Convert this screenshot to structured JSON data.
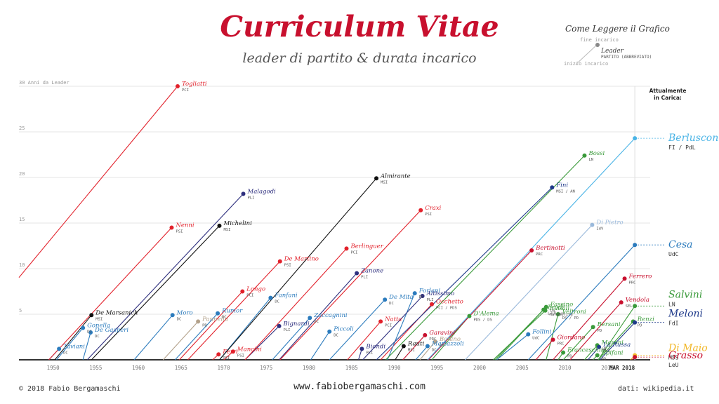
{
  "title": "Curriculum Vitae",
  "subtitle": "leader di partito & durata incarico",
  "legend": {
    "title": "Come Leggere il Grafico",
    "end_label": "fine incarico",
    "leader_label": "Leader",
    "party_label": "PARTITO (ABBREVIATO)",
    "start_label": "inizio incarico"
  },
  "footer": {
    "copyright": "© 2018 Fabio Bergamaschi",
    "website": "www.fabiobergamaschi.com",
    "source": "dati: wikipedia.it"
  },
  "chart_data": {
    "type": "scatter",
    "xlim": [
      1946,
      2020
    ],
    "ylim": [
      0,
      30
    ],
    "y_axis_top_label": "30 Anni da Leader",
    "x_ticks": [
      "1950",
      "1955",
      "1960",
      "1965",
      "1970",
      "1975",
      "1980",
      "1985",
      "1990",
      "1995",
      "2000",
      "2005",
      "2010",
      "2015"
    ],
    "y_ticks": [
      "5",
      "10",
      "15",
      "20",
      "25"
    ],
    "current_date_label": "MAR 2018",
    "current_header": "Attualmente in Carica:",
    "colors": {
      "PCI": "#e2212b",
      "DC": "#2b7bbd",
      "MSI": "#111111",
      "PSI": "#e2212b",
      "PLI": "#2e2f7e",
      "PR": "#b3a18b",
      "FI": "#4ab4e6",
      "UdC": "#2b7bbd",
      "LN": "#3a9a3a",
      "FdI": "#1f3a8a",
      "M5S": "#f2b82b",
      "LeU": "#c8102e",
      "PD": "#3a9a3a",
      "IdV": "#9ab9db",
      "PRC": "#c8102e",
      "SEL": "#c8102e",
      "AN": "#1f3a8a"
    },
    "leaders": [
      {
        "name": "Togliatti",
        "party": "PCI",
        "start": 1938.0,
        "end": 1964.6,
        "years": 30,
        "color": "PCI"
      },
      {
        "name": "Taviani",
        "party": "DC",
        "start": 1949.5,
        "end": 1950.7,
        "years": 1.2,
        "color": "DC"
      },
      {
        "name": "Gonella",
        "party": "DC",
        "start": 1950.4,
        "end": 1953.5,
        "years": 3.5,
        "color": "DC"
      },
      {
        "name": "De Gasperi",
        "party": "DC",
        "start": 1953.5,
        "end": 1954.4,
        "years": 3.0,
        "color": "DC"
      },
      {
        "name": "De Marsanich",
        "party": "MSI",
        "start": 1950.2,
        "end": 1954.5,
        "years": 4.9,
        "color": "MSI"
      },
      {
        "name": "Nenni",
        "party": "PSI",
        "start": 1949.5,
        "end": 1963.9,
        "years": 14.5,
        "color": "PSI"
      },
      {
        "name": "Malagodi",
        "party": "PLI",
        "start": 1954.0,
        "end": 1972.3,
        "years": 18.2,
        "color": "PLI"
      },
      {
        "name": "Michelini",
        "party": "MSI",
        "start": 1954.5,
        "end": 1969.5,
        "years": 14.7,
        "color": "MSI"
      },
      {
        "name": "Moro",
        "party": "DC",
        "start": 1959.5,
        "end": 1964.0,
        "years": 4.9,
        "color": "DC"
      },
      {
        "name": "Pannella",
        "party": "PR",
        "start": 1962.9,
        "end": 1967.0,
        "years": 4.2,
        "color": "PR"
      },
      {
        "name": "Rumor",
        "party": "DC",
        "start": 1964.3,
        "end": 1969.3,
        "years": 5.1,
        "color": "DC"
      },
      {
        "name": "Ferri",
        "party": "PSI",
        "start": 1968.7,
        "end": 1969.4,
        "years": 0.6,
        "color": "PSI"
      },
      {
        "name": "Mancini",
        "party": "PSI",
        "start": 1970.0,
        "end": 1971.1,
        "years": 0.9,
        "color": "PSI"
      },
      {
        "name": "Longo",
        "party": "PCI",
        "start": 1964.8,
        "end": 1972.2,
        "years": 7.5,
        "color": "PCI"
      },
      {
        "name": "De Martino",
        "party": "PSI",
        "start": 1965.8,
        "end": 1976.6,
        "years": 10.8,
        "color": "PSI"
      },
      {
        "name": "Fanfani",
        "party": "DC",
        "start": 1969.5,
        "end": 1975.5,
        "years": 6.8,
        "color": "DC"
      },
      {
        "name": "Bignardi",
        "party": "PLI",
        "start": 1972.5,
        "end": 1976.5,
        "years": 3.7,
        "color": "PLI"
      },
      {
        "name": "Almirante",
        "party": "MSI",
        "start": 1969.5,
        "end": 1987.9,
        "years": 19.9,
        "color": "MSI"
      },
      {
        "name": "Zaccagnini",
        "party": "DC",
        "start": 1975.7,
        "end": 1980.1,
        "years": 4.6,
        "color": "DC"
      },
      {
        "name": "Piccoli",
        "party": "DC",
        "start": 1980.2,
        "end": 1982.4,
        "years": 3.1,
        "color": "DC"
      },
      {
        "name": "Berlinguer",
        "party": "PCI",
        "start": 1972.5,
        "end": 1984.4,
        "years": 12.2,
        "color": "PCI"
      },
      {
        "name": "Zanone",
        "party": "PLI",
        "start": 1976.5,
        "end": 1985.6,
        "years": 9.5,
        "color": "PLI"
      },
      {
        "name": "Biondi",
        "party": "PLI",
        "start": 1985.8,
        "end": 1986.2,
        "years": 1.2,
        "color": "PLI"
      },
      {
        "name": "Craxi",
        "party": "PSI",
        "start": 1976.6,
        "end": 1993.1,
        "years": 16.4,
        "color": "PSI"
      },
      {
        "name": "De Mita",
        "party": "DC",
        "start": 1982.4,
        "end": 1988.9,
        "years": 6.6,
        "color": "DC"
      },
      {
        "name": "Natta",
        "party": "PCI",
        "start": 1984.5,
        "end": 1988.4,
        "years": 4.2,
        "color": "PCI"
      },
      {
        "name": "Rauti",
        "party": "MSI",
        "start": 1990.1,
        "end": 1991.1,
        "years": 1.5,
        "color": "MSI"
      },
      {
        "name": "Occhetto",
        "party": "PCI / PDS",
        "start": 1988.4,
        "end": 1994.4,
        "years": 6.1,
        "color": "PCI"
      },
      {
        "name": "Forlani",
        "party": "DC",
        "start": 1989.2,
        "end": 1992.4,
        "years": 7.3,
        "color": "DC"
      },
      {
        "name": "Altissimo",
        "party": "PLI",
        "start": 1986.3,
        "end": 1993.3,
        "years": 7.0,
        "color": "PLI"
      },
      {
        "name": "Martazzoli",
        "party": "DC",
        "start": 1992.5,
        "end": 1993.9,
        "years": 1.5,
        "color": "DC"
      },
      {
        "name": "Bonino",
        "party": "PR",
        "start": 1993.0,
        "end": 1994.8,
        "years": 2.0,
        "color": "PR"
      },
      {
        "name": "Garavini",
        "party": "PRC",
        "start": 1991.0,
        "end": 1993.6,
        "years": 2.7,
        "color": "PRC"
      },
      {
        "name": "Fini",
        "party": "MSI / AN",
        "start": 1987.9,
        "end": 2008.5,
        "years": 18.9,
        "color": "AN"
      },
      {
        "name": "D'Alema",
        "party": "PDS / DS",
        "start": 1994.4,
        "end": 1998.8,
        "years": 4.8,
        "color": "PD"
      },
      {
        "name": "Bertinotti",
        "party": "PRC",
        "start": 1994.0,
        "end": 2006.1,
        "years": 12.0,
        "color": "PRC"
      },
      {
        "name": "Prodi",
        "party": "L'Ulivo",
        "start": 2002.0,
        "end": 2007.5,
        "years": 5.5,
        "color": "PD"
      },
      {
        "name": "Fassino",
        "party": "DS",
        "start": 2001.8,
        "end": 2007.8,
        "years": 5.8,
        "color": "PD"
      },
      {
        "name": "Rutelli",
        "party": "Margherita",
        "start": 2001.6,
        "end": 2007.7,
        "years": 5.4,
        "color": "PD"
      },
      {
        "name": "Follini",
        "party": "UdC",
        "start": 2002.0,
        "end": 2005.7,
        "years": 2.8,
        "color": "UdC"
      },
      {
        "name": "Veltroni",
        "party": "DS / PD",
        "start": 2007.8,
        "end": 2009.2,
        "years": 5.0,
        "color": "PD"
      },
      {
        "name": "Franceschini",
        "party": "PD",
        "start": 2009.2,
        "end": 2009.8,
        "years": 0.8,
        "color": "PD"
      },
      {
        "name": "Giordano",
        "party": "PRC",
        "start": 2006.6,
        "end": 2008.6,
        "years": 2.2,
        "color": "PRC"
      },
      {
        "name": "Bossi",
        "party": "LN",
        "start": 1989.0,
        "end": 2012.3,
        "years": 22.4,
        "color": "LN"
      },
      {
        "name": "Di Pietro",
        "party": "IdV",
        "start": 1998.3,
        "end": 2013.2,
        "years": 14.8,
        "color": "IdV"
      },
      {
        "name": "Bersani",
        "party": "PD",
        "start": 2009.8,
        "end": 2013.3,
        "years": 3.6,
        "color": "PD"
      },
      {
        "name": "Ferrero",
        "party": "PRC",
        "start": 2008.6,
        "end": 2017.0,
        "years": 8.9,
        "color": "PRC"
      },
      {
        "name": "Vendola",
        "party": "SEL",
        "start": 2010.6,
        "end": 2016.6,
        "years": 6.3,
        "color": "SEL"
      },
      {
        "name": "Maroni",
        "party": "LN",
        "start": 2012.3,
        "end": 2013.8,
        "years": 1.6,
        "color": "LN"
      },
      {
        "name": "La Russa",
        "party": "FdI",
        "start": 2012.7,
        "end": 2014.0,
        "years": 1.4,
        "color": "FdI"
      },
      {
        "name": "Epifani",
        "party": "PD",
        "start": 2013.3,
        "end": 2013.8,
        "years": 0.5,
        "color": "PD"
      },
      {
        "name": "Renzi",
        "party": "PD",
        "start": 2013.9,
        "end": 2018.0,
        "years": 4.2,
        "color": "PD"
      },
      {
        "name": "Berlusconi",
        "party": "FI / PdL",
        "start": 1993.9,
        "end": 2018.2,
        "years": 24.3,
        "color": "FI",
        "current": true
      },
      {
        "name": "Cesa",
        "party": "UdC",
        "start": 2005.7,
        "end": 2018.2,
        "years": 12.6,
        "color": "UdC",
        "current": true
      },
      {
        "name": "Salvini",
        "party": "LN",
        "start": 2013.9,
        "end": 2018.2,
        "years": 5.9,
        "color": "LN",
        "current": true
      },
      {
        "name": "Meloni",
        "party": "FdI",
        "start": 2014.1,
        "end": 2018.2,
        "years": 4.1,
        "color": "FdI",
        "current": true
      },
      {
        "name": "Di Maio",
        "party": "M5S",
        "start": 2017.7,
        "end": 2018.2,
        "years": 0.5,
        "color": "M5S",
        "current": true
      },
      {
        "name": "Grasso",
        "party": "LeU",
        "start": 2017.9,
        "end": 2018.2,
        "years": 0.3,
        "color": "LeU",
        "current": true
      }
    ]
  }
}
